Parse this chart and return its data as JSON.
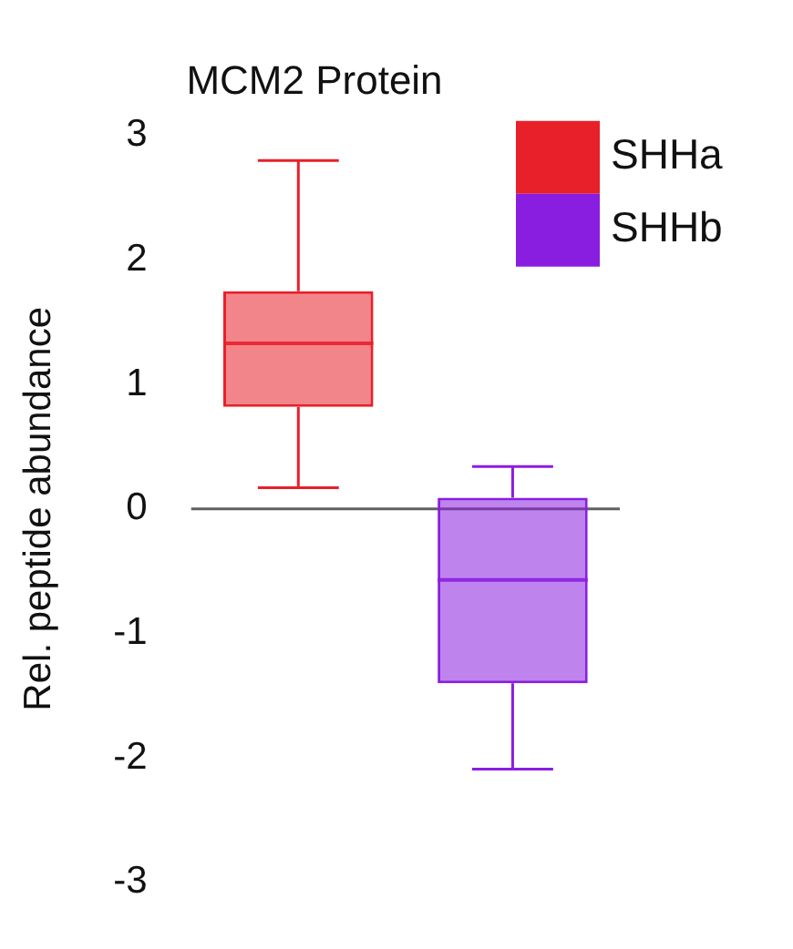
{
  "chart_data": {
    "type": "box",
    "title": "MCM2 Protein",
    "ylabel": "Rel. peptide abundance",
    "categories": [
      null,
      null
    ],
    "series": [
      {
        "name": "SHHa",
        "color": "#e8202a",
        "boxes": [
          {
            "low": 0.17,
            "q1": 0.82,
            "median": 1.33,
            "q3": 1.75,
            "high": 2.8
          },
          null
        ]
      },
      {
        "name": "SHHb",
        "color": "#8a1ee0",
        "boxes": [
          null,
          {
            "low": -2.09,
            "q1": -1.4,
            "median": -0.57,
            "q3": 0.09,
            "high": 0.34
          }
        ]
      }
    ],
    "ylim": [
      -3,
      3
    ],
    "yticks": [
      -3,
      -2,
      -1,
      0,
      1,
      2,
      3
    ],
    "tick_labels": "y",
    "grid": false,
    "legend": "top right",
    "ref_lines": [
      {
        "axis": "y",
        "value": 0,
        "color": "#606060"
      }
    ]
  }
}
